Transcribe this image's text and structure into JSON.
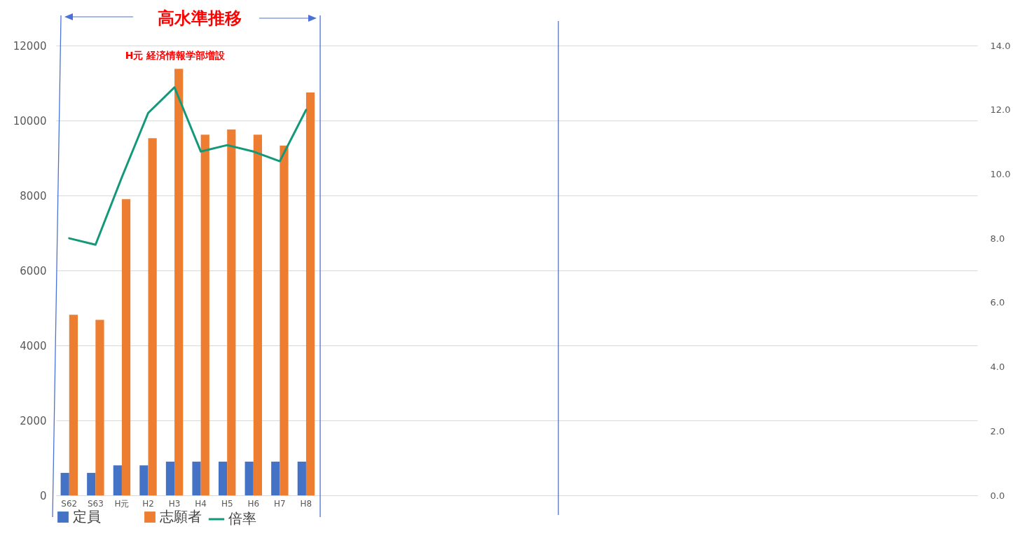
{
  "chart_data": {
    "type": "bar",
    "categories": [
      "S62",
      "S63",
      "H元",
      "H2",
      "H3",
      "H4",
      "H5",
      "H6",
      "H7",
      "H8",
      null,
      null,
      null,
      null,
      null,
      null,
      null,
      null,
      null,
      null,
      null,
      null,
      null,
      null,
      null,
      null,
      null,
      null,
      null,
      null,
      null,
      null,
      null,
      null,
      null
    ],
    "series": [
      {
        "name": "定員",
        "color": "#4472c4",
        "values": [
          600,
          600,
          800,
          800,
          900,
          900,
          900,
          900,
          900,
          900,
          null,
          null,
          null,
          null,
          null,
          null,
          null,
          null,
          null,
          null,
          null,
          null,
          null,
          null,
          null,
          null,
          null,
          null,
          null,
          null,
          null,
          null,
          null,
          null,
          null
        ]
      },
      {
        "name": "志願者",
        "color": "#ed7d31",
        "values": [
          4820,
          4680,
          7900,
          9530,
          11380,
          9620,
          9760,
          9620,
          9330,
          10750,
          null,
          null,
          null,
          null,
          null,
          null,
          null,
          null,
          null,
          null,
          null,
          null,
          null,
          null,
          null,
          null,
          null,
          null,
          null,
          null,
          null,
          null,
          null,
          null,
          null
        ]
      },
      {
        "name": "倍率",
        "type": "line",
        "axis": "y2",
        "color": "#13987a",
        "values": [
          8.0,
          7.8,
          9.9,
          11.9,
          12.7,
          10.7,
          10.9,
          10.7,
          10.4,
          12.0,
          null,
          null,
          null,
          null,
          null,
          null,
          null,
          null,
          null,
          null,
          null,
          null,
          null,
          null,
          null,
          null,
          null,
          null,
          null,
          null,
          null,
          null,
          null,
          null,
          null
        ]
      }
    ],
    "ylim": [
      0,
      12000
    ],
    "yticks": [
      0,
      2000,
      4000,
      6000,
      8000,
      10000,
      12000
    ],
    "y2lim": [
      0,
      14
    ],
    "y2ticks": [
      {
        "value": 0,
        "label": "0.0"
      },
      {
        "value": 2,
        "label": "2.0"
      },
      {
        "value": 4,
        "label": "4.0"
      },
      {
        "value": 6,
        "label": "6.0"
      },
      {
        "value": 8,
        "label": "8.0"
      },
      {
        "value": 10,
        "label": "10.0"
      },
      {
        "value": 12,
        "label": "12.0"
      },
      {
        "value": 14,
        "label": "14.0"
      }
    ],
    "grid": "y",
    "legend": "bottom",
    "marker": "none",
    "line_style": "solid",
    "annotations": [
      "高水準推移",
      "H元 経済情報学部増設"
    ]
  }
}
